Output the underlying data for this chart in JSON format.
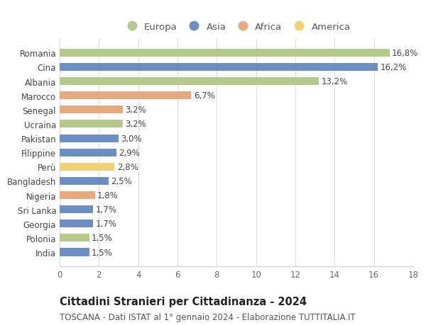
{
  "countries": [
    "Romania",
    "Cina",
    "Albania",
    "Marocco",
    "Senegal",
    "Ucraina",
    "Pakistan",
    "Filippine",
    "Perù",
    "Bangladesh",
    "Nigeria",
    "Sri Lanka",
    "Georgia",
    "Polonia",
    "India"
  ],
  "values": [
    16.8,
    16.2,
    13.2,
    6.7,
    3.2,
    3.2,
    3.0,
    2.9,
    2.8,
    2.5,
    1.8,
    1.7,
    1.7,
    1.5,
    1.5
  ],
  "labels": [
    "16,8%",
    "16,2%",
    "13,2%",
    "6,7%",
    "3,2%",
    "3,2%",
    "3,0%",
    "2,9%",
    "2,8%",
    "2,5%",
    "1,8%",
    "1,7%",
    "1,7%",
    "1,5%",
    "1,5%"
  ],
  "continents": [
    "Europa",
    "Asia",
    "Europa",
    "Africa",
    "Africa",
    "Europa",
    "Asia",
    "Asia",
    "America",
    "Asia",
    "Africa",
    "Asia",
    "Asia",
    "Europa",
    "Asia"
  ],
  "continent_colors": {
    "Europa": "#b5c98a",
    "Asia": "#6b8ec4",
    "Africa": "#e8a97e",
    "America": "#f0d070"
  },
  "legend_order": [
    "Europa",
    "Asia",
    "Africa",
    "America"
  ],
  "title": "Cittadini Stranieri per Cittadinanza - 2024",
  "subtitle": "TOSCANA - Dati ISTAT al 1° gennaio 2024 - Elaborazione TUTTITALIA.IT",
  "xlim": [
    0,
    18
  ],
  "xticks": [
    0,
    2,
    4,
    6,
    8,
    10,
    12,
    14,
    16,
    18
  ],
  "background_color": "#ffffff",
  "grid_color": "#dddddd",
  "bar_height": 0.55,
  "title_fontsize": 10.5,
  "subtitle_fontsize": 8.5,
  "label_fontsize": 8.5,
  "tick_fontsize": 8.5,
  "legend_fontsize": 9.5
}
